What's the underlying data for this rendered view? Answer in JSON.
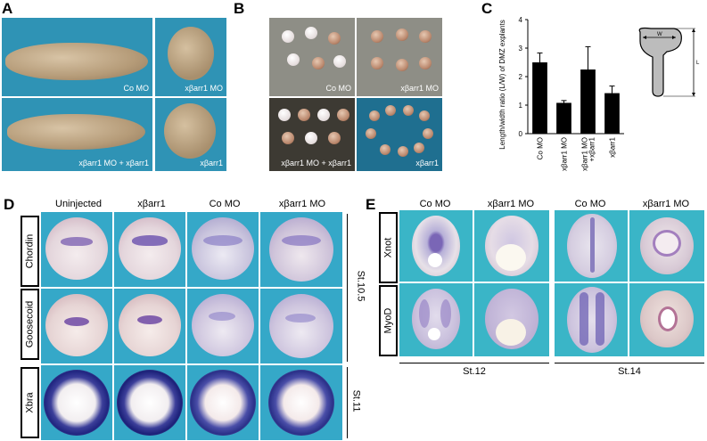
{
  "panelA": {
    "letter": "A",
    "captions": [
      "Co MO",
      "xβarr1 MO",
      "xβarr1 MO + xβarr1",
      "xβarr1"
    ]
  },
  "panelB": {
    "letter": "B",
    "captions": [
      "Co MO",
      "xβarr1 MO",
      "xβarr1 MO + xβarr1",
      "xβarr1"
    ]
  },
  "panelC": {
    "letter": "C",
    "diagram": {
      "w_label": "W",
      "l_label": "L"
    }
  },
  "chart_data": {
    "type": "bar",
    "categories": [
      "Co MO",
      "xβarr1 MO",
      "xβarr1 MO +xβarr1",
      "xβarr1"
    ],
    "values": [
      2.5,
      1.08,
      2.25,
      1.42
    ],
    "errors": [
      0.33,
      0.08,
      0.8,
      0.25
    ],
    "ylabel": "Length/width ratio (L/W) of DMZ explants",
    "ylim": [
      0,
      4
    ],
    "yticks": [
      "0",
      "1",
      "2",
      "3",
      "4"
    ],
    "bar_color": "#000000"
  },
  "panelD": {
    "letter": "D",
    "columns": [
      "Uninjected",
      "xβarr1",
      "Co MO",
      "xβarr1 MO"
    ],
    "rows": [
      "Chordin",
      "Goosecoid",
      "Xbra"
    ],
    "stages": [
      "St.10.5",
      "St.11"
    ]
  },
  "panelE": {
    "letter": "E",
    "columns": [
      "Co MO",
      "xβarr1 MO",
      "Co MO",
      "xβarr1 MO"
    ],
    "rows": [
      "Xnot",
      "MyoD"
    ],
    "stages": [
      "St.12",
      "St.14"
    ]
  }
}
